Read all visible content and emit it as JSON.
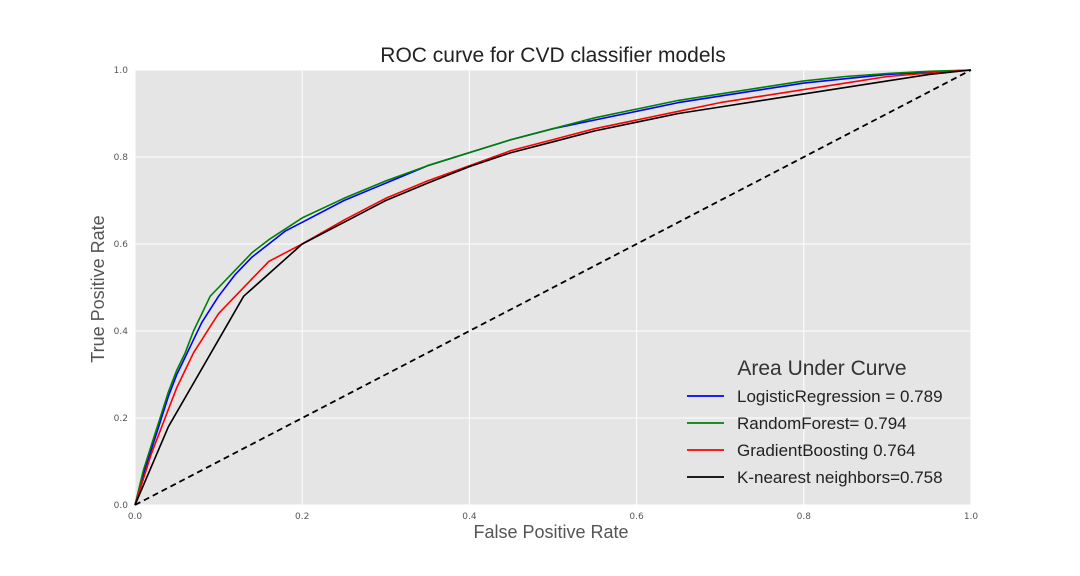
{
  "chart_data": {
    "type": "line",
    "title": "ROC curve for CVD classifier models",
    "xlabel": "False Positive Rate",
    "ylabel": "True Positive Rate",
    "xlim": [
      0.0,
      1.0
    ],
    "ylim": [
      0.0,
      1.0
    ],
    "xticks": [
      "0.0",
      "0.2",
      "0.4",
      "0.6",
      "0.8",
      "1.0"
    ],
    "yticks": [
      "0.0",
      "0.2",
      "0.4",
      "0.6",
      "0.8",
      "1.0"
    ],
    "grid": true,
    "legend": {
      "title": "Area Under Curve",
      "placement": "lower-right"
    },
    "series": [
      {
        "name": "LogisticRegression = 0.789",
        "color": "#0000ff",
        "x": [
          0.0,
          0.01,
          0.02,
          0.03,
          0.04,
          0.05,
          0.06,
          0.07,
          0.08,
          0.09,
          0.1,
          0.12,
          0.14,
          0.16,
          0.18,
          0.2,
          0.25,
          0.3,
          0.35,
          0.4,
          0.45,
          0.5,
          0.55,
          0.6,
          0.65,
          0.7,
          0.75,
          0.8,
          0.85,
          0.9,
          0.95,
          1.0
        ],
        "y": [
          0.0,
          0.07,
          0.13,
          0.19,
          0.25,
          0.3,
          0.34,
          0.38,
          0.42,
          0.45,
          0.48,
          0.53,
          0.57,
          0.6,
          0.63,
          0.65,
          0.7,
          0.74,
          0.78,
          0.81,
          0.84,
          0.865,
          0.885,
          0.905,
          0.925,
          0.94,
          0.955,
          0.97,
          0.98,
          0.99,
          0.995,
          1.0
        ]
      },
      {
        "name": "RandomForest= 0.794",
        "color": "#008000",
        "x": [
          0.0,
          0.01,
          0.02,
          0.03,
          0.04,
          0.05,
          0.06,
          0.07,
          0.08,
          0.09,
          0.1,
          0.12,
          0.14,
          0.16,
          0.18,
          0.2,
          0.25,
          0.3,
          0.35,
          0.4,
          0.45,
          0.5,
          0.55,
          0.6,
          0.65,
          0.7,
          0.75,
          0.8,
          0.85,
          0.9,
          0.95,
          1.0
        ],
        "y": [
          0.0,
          0.08,
          0.14,
          0.2,
          0.26,
          0.31,
          0.35,
          0.4,
          0.44,
          0.48,
          0.5,
          0.54,
          0.58,
          0.61,
          0.635,
          0.66,
          0.705,
          0.745,
          0.78,
          0.81,
          0.84,
          0.865,
          0.89,
          0.91,
          0.93,
          0.945,
          0.96,
          0.975,
          0.985,
          0.992,
          0.997,
          1.0
        ]
      },
      {
        "name": "GradientBoosting 0.764",
        "color": "#ff0000",
        "x": [
          0.0,
          0.01,
          0.02,
          0.03,
          0.04,
          0.05,
          0.06,
          0.07,
          0.08,
          0.09,
          0.1,
          0.12,
          0.14,
          0.16,
          0.18,
          0.2,
          0.25,
          0.3,
          0.35,
          0.4,
          0.45,
          0.5,
          0.55,
          0.6,
          0.65,
          0.7,
          0.75,
          0.8,
          0.85,
          0.9,
          0.95,
          1.0
        ],
        "y": [
          0.0,
          0.06,
          0.12,
          0.17,
          0.22,
          0.27,
          0.31,
          0.35,
          0.38,
          0.41,
          0.44,
          0.48,
          0.52,
          0.56,
          0.58,
          0.6,
          0.655,
          0.705,
          0.745,
          0.78,
          0.815,
          0.84,
          0.865,
          0.885,
          0.905,
          0.925,
          0.94,
          0.955,
          0.97,
          0.985,
          0.993,
          1.0
        ]
      },
      {
        "name": "K-nearest neighbors=0.758",
        "color": "#000000",
        "x": [
          0.0,
          0.04,
          0.13,
          0.2,
          0.25,
          0.3,
          0.35,
          0.4,
          0.45,
          0.5,
          0.55,
          0.6,
          0.65,
          0.7,
          0.75,
          0.8,
          0.85,
          0.9,
          0.95,
          1.0
        ],
        "y": [
          0.0,
          0.18,
          0.48,
          0.6,
          0.65,
          0.7,
          0.74,
          0.778,
          0.81,
          0.835,
          0.86,
          0.88,
          0.9,
          0.915,
          0.93,
          0.945,
          0.96,
          0.975,
          0.99,
          1.0
        ]
      }
    ],
    "reference_line": {
      "x": [
        0.0,
        1.0
      ],
      "y": [
        0.0,
        1.0
      ],
      "color": "#000000",
      "style": "dashed"
    },
    "style": {
      "plot_background": "#e5e5e5",
      "grid_color": "#ffffff"
    }
  }
}
